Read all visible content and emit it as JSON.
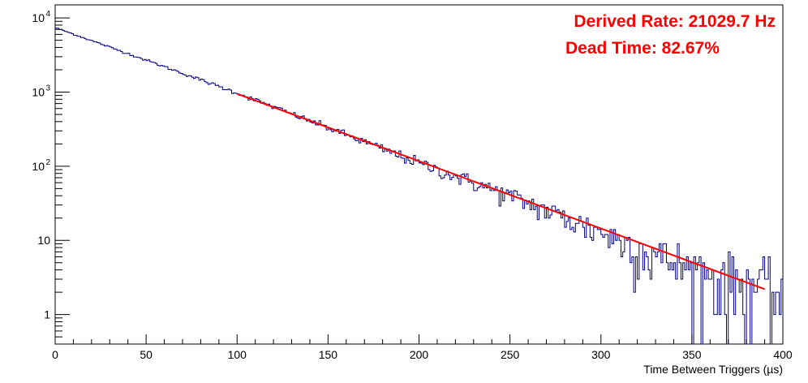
{
  "chart_data": {
    "type": "line",
    "style": "histogram-step",
    "xlabel": "Time Between Triggers (µs)",
    "ylabel": "",
    "xlim": [
      0,
      400
    ],
    "ylim": [
      0.4,
      15000
    ],
    "yscale": "log",
    "grid": false,
    "x_ticks": [
      "0",
      "50",
      "100",
      "150",
      "200",
      "250",
      "300",
      "350",
      "400"
    ],
    "y_ticks": [
      {
        "value": 1,
        "label": "1",
        "sup": ""
      },
      {
        "value": 10,
        "label": "10",
        "sup": ""
      },
      {
        "value": 100,
        "label": "10",
        "sup": "2"
      },
      {
        "value": 1000,
        "label": "10",
        "sup": "3"
      },
      {
        "value": 10000,
        "label": "10",
        "sup": "4"
      }
    ],
    "annotations": [
      {
        "text": "Derived Rate: 21029.7 Hz",
        "color": "#ff0000"
      },
      {
        "text": "Dead Time: 82.67%",
        "color": "#ff0000"
      }
    ],
    "series": [
      {
        "kind": "histogram",
        "color": "#000080",
        "bin_width": 1,
        "x_start": 0,
        "sample_points": [
          [
            0,
            7400
          ],
          [
            50,
            2700
          ],
          [
            100,
            970
          ],
          [
            150,
            330
          ],
          [
            200,
            110
          ],
          [
            250,
            40
          ],
          [
            300,
            13
          ],
          [
            350,
            4
          ],
          [
            400,
            2
          ]
        ]
      },
      {
        "kind": "fit",
        "color": "#ff0000",
        "x_range": [
          100,
          390
        ],
        "points": [
          [
            100,
            950
          ],
          [
            390,
            2.2
          ]
        ]
      }
    ]
  }
}
